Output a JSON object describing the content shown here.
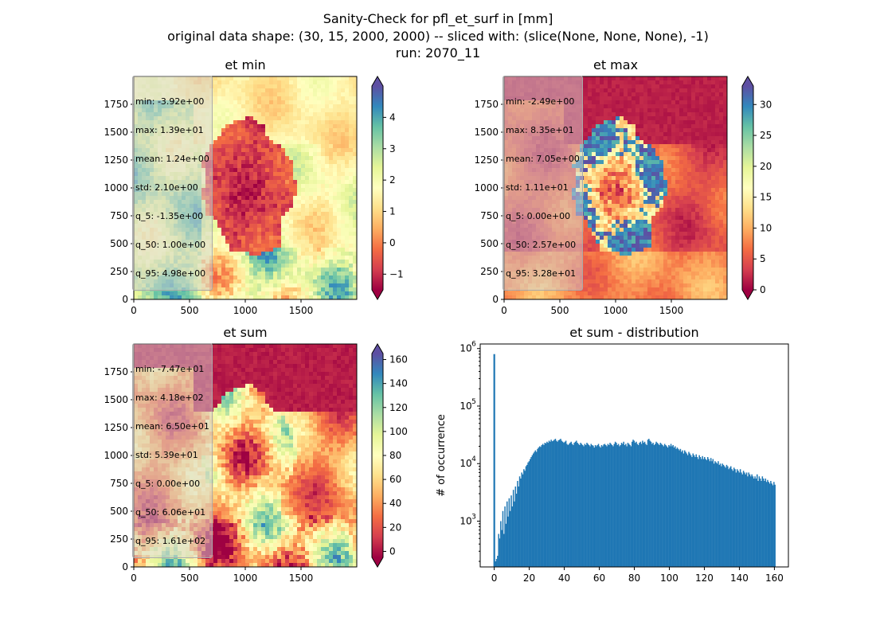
{
  "title": {
    "line1": "Sanity-Check for pfl_et_surf in [mm]",
    "line2": "original data shape: (30, 15, 2000, 2000) -- sliced with: (slice(None, None, None), -1)",
    "line3": "run: 2070_11"
  },
  "colormap": "Spectral",
  "chart_data": [
    {
      "type": "heatmap",
      "title": "et min",
      "xlim": [
        0,
        2000
      ],
      "ylim": [
        0,
        2000
      ],
      "xticks": [
        "0",
        "500",
        "1000",
        "1500"
      ],
      "yticks": [
        "0",
        "250",
        "500",
        "750",
        "1000",
        "1250",
        "1500",
        "1750"
      ],
      "colorbar": {
        "vmin": -1.5,
        "vmax": 5,
        "ticks": [
          "−1",
          "0",
          "1",
          "2",
          "3",
          "4"
        ],
        "extend": "both"
      },
      "stats": [
        "min: -3.92e+00",
        "max: 1.39e+01",
        "mean: 1.24e+00",
        "std: 2.10e+00",
        "q_5: -1.35e+00",
        "q_50: 1.00e+00",
        "q_95: 4.98e+00"
      ]
    },
    {
      "type": "heatmap",
      "title": "et max",
      "xlim": [
        0,
        2000
      ],
      "ylim": [
        0,
        2000
      ],
      "xticks": [
        "0",
        "500",
        "1000",
        "1500"
      ],
      "yticks": [
        "0",
        "250",
        "500",
        "750",
        "1000",
        "1250",
        "1500",
        "1750"
      ],
      "colorbar": {
        "vmin": 0,
        "vmax": 33,
        "ticks": [
          "0",
          "5",
          "10",
          "15",
          "20",
          "25",
          "30"
        ],
        "extend": "both"
      },
      "stats": [
        "min: -2.49e+00",
        "max: 8.35e+01",
        "mean: 7.05e+00",
        "std: 1.11e+01",
        "q_5: 0.00e+00",
        "q_50: 2.57e+00",
        "q_95: 3.28e+01"
      ]
    },
    {
      "type": "heatmap",
      "title": "et sum",
      "xlim": [
        0,
        2000
      ],
      "ylim": [
        0,
        2000
      ],
      "xticks": [
        "0",
        "500",
        "1000",
        "1500"
      ],
      "yticks": [
        "0",
        "250",
        "500",
        "750",
        "1000",
        "1250",
        "1500",
        "1750"
      ],
      "colorbar": {
        "vmin": -5,
        "vmax": 165,
        "ticks": [
          "0",
          "20",
          "40",
          "60",
          "80",
          "100",
          "120",
          "140",
          "160"
        ],
        "extend": "both"
      },
      "stats": [
        "min: -7.47e+01",
        "max: 4.18e+02",
        "mean: 6.50e+01",
        "std: 5.39e+01",
        "q_5: 0.00e+00",
        "q_50: 6.06e+01",
        "q_95: 1.61e+02"
      ]
    },
    {
      "type": "bar",
      "title": "et sum - distribution",
      "ylabel": "# of occurrence",
      "yscale": "log",
      "xlim": [
        -8,
        168
      ],
      "ylim": [
        160,
        1200000
      ],
      "xticks": [
        "0",
        "20",
        "40",
        "60",
        "80",
        "100",
        "120",
        "140",
        "160"
      ],
      "yticks": [
        {
          "base": "10",
          "exp": "3"
        },
        {
          "base": "10",
          "exp": "4"
        },
        {
          "base": "10",
          "exp": "5"
        },
        {
          "base": "10",
          "exp": "6"
        }
      ],
      "bin_width": 0.8,
      "spike": {
        "x": 0,
        "count": 800000
      },
      "counts": [
        200,
        220,
        250,
        600,
        500,
        1000,
        700,
        1500,
        600,
        1800,
        900,
        2200,
        1200,
        2500,
        1500,
        2800,
        1800,
        3500,
        2200,
        4000,
        3000,
        5000,
        4000,
        6000,
        5500,
        7000,
        6500,
        8000,
        7500,
        9000,
        9500,
        10500,
        11000,
        12000,
        13000,
        14000,
        15000,
        16000,
        17000,
        16000,
        18000,
        19000,
        20000,
        19500,
        21000,
        22000,
        21000,
        23000,
        22500,
        24000,
        23000,
        25000,
        24000,
        26000,
        24500,
        25000,
        26000,
        27000,
        25000,
        24000,
        25500,
        26000,
        27000,
        25000,
        24000,
        23000,
        24000,
        25000,
        22000,
        21000,
        22000,
        23000,
        24000,
        22000,
        21000,
        23000,
        24000,
        25000,
        23000,
        22000,
        21000,
        23000,
        22000,
        21000,
        20000,
        22000,
        21000,
        23000,
        22000,
        21000,
        20000,
        22000,
        21000,
        20500,
        19000,
        21000,
        20000,
        21000,
        22000,
        20000,
        19000,
        21000,
        20000,
        21500,
        22000,
        21000,
        20000,
        22000,
        21000,
        23000,
        22000,
        21000,
        20000,
        22000,
        24000,
        23000,
        21000,
        22000,
        20000,
        21000,
        23000,
        22000,
        24000,
        21000,
        22000,
        20000,
        23000,
        22000,
        21000,
        20000,
        24000,
        26000,
        25000,
        23000,
        24000,
        22000,
        21000,
        23000,
        24000,
        22000,
        25000,
        23000,
        24000,
        22000,
        21000,
        26000,
        27000,
        25000,
        24000,
        22000,
        23000,
        21000,
        22000,
        24000,
        23000,
        22000,
        21000,
        23000,
        22000,
        21000,
        20000,
        22000,
        21000,
        20000,
        19000,
        21000,
        20000,
        22000,
        20000,
        21000,
        19000,
        20000,
        18000,
        19000,
        18000,
        17000,
        18000,
        16000,
        17000,
        15000,
        17000,
        16000,
        15000,
        14000,
        16000,
        15000,
        14000,
        13000,
        15000,
        14000,
        13000,
        14500,
        13000,
        12000,
        14000,
        13000,
        12000,
        13500,
        12000,
        13000,
        12000,
        11500,
        13000,
        12000,
        11000,
        12500,
        11000,
        12000,
        10000,
        11000,
        10500,
        10000,
        11000,
        9500,
        10000,
        9000,
        10000,
        9500,
        9000,
        8500,
        9500,
        9000,
        8000,
        8500,
        9000,
        8000,
        7500,
        8500,
        8000,
        7000,
        8000,
        7500,
        7000,
        8000,
        7000,
        6500,
        7500,
        7000,
        6500,
        7000,
        6000,
        7000,
        6500,
        6000,
        6500,
        6000,
        5500,
        6000,
        5500,
        6500,
        5000,
        6000,
        5500,
        5000,
        6000,
        5500,
        5000,
        5500,
        4800,
        5200,
        4800,
        4500,
        5000,
        4500,
        4200,
        4800,
        4300,
        4000,
        4500,
        4200,
        3800,
        4600,
        4000,
        3800
      ]
    }
  ]
}
